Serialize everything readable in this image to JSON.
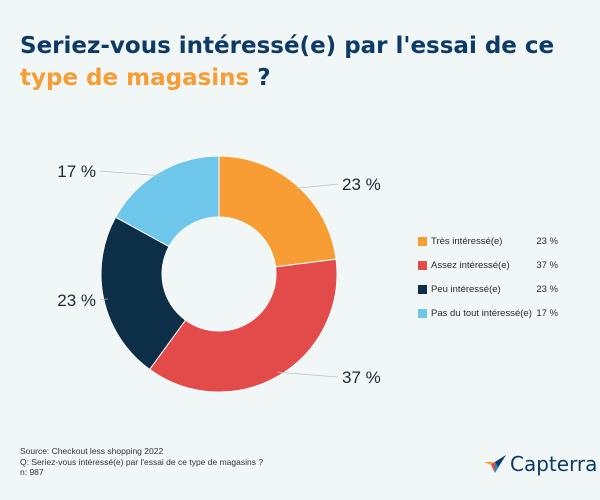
{
  "title": {
    "part1": "Seriez-vous intéressé(e) par l'essai de ce",
    "part2": "type de magasins",
    "part3": " ?"
  },
  "chart_data": {
    "type": "pie",
    "title": "Seriez-vous intéressé(e) par l'essai de ce type de magasins ?",
    "categories": [
      "Très intéressé(e)",
      "Assez intéressé(e)",
      "Peu intéressé(e)",
      "Pas du tout intéressé(e)"
    ],
    "values": [
      23,
      37,
      23,
      17
    ],
    "labels": [
      "23 %",
      "37 %",
      "23 %",
      "17 %"
    ],
    "colors": [
      "#f79d34",
      "#e34a4a",
      "#0d2e47",
      "#6ec6eb"
    ],
    "unit": "%",
    "legend_position": "right"
  },
  "legend": [
    {
      "label": "Très intéressé(e)",
      "value": "23 %",
      "color": "#f79d34"
    },
    {
      "label": "Assez intéressé(e)",
      "value": "37 %",
      "color": "#e34a4a"
    },
    {
      "label": "Peu intéressé(e)",
      "value": "23 %",
      "color": "#0d2e47"
    },
    {
      "label": "Pas du tout intéressé(e)",
      "value": "17 %",
      "color": "#6ec6eb"
    }
  ],
  "source": {
    "line1": "Source: Checkout less shopping 2022",
    "line2": "Q: Seriez-vous intéressé(e) par l'essai de ce type de magasins ?",
    "line3": "n: 987"
  },
  "brand": {
    "name": "Capterra",
    "icon": "capterra-logo-icon"
  },
  "colors": {
    "background": "#f1f6f7",
    "title": "#0d3a66",
    "title_highlight": "#f79d34"
  }
}
